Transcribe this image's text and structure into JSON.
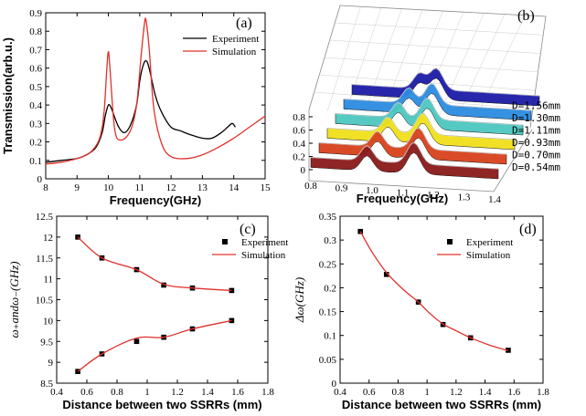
{
  "chart_data": [
    {
      "panel": "(a)",
      "type": "line",
      "xlabel": "Frequency(GHz)",
      "ylabel": "Transmission(arb.u.)",
      "xlim": [
        8,
        15
      ],
      "ylim": [
        0,
        0.9
      ],
      "xticks": [
        "8",
        "9",
        "10",
        "11",
        "12",
        "13",
        "14",
        "15"
      ],
      "yticks": [
        "0",
        "0.1",
        "0.2",
        "0.3",
        "0.4",
        "0.5",
        "0.6",
        "0.7",
        "0.8",
        "0.9"
      ],
      "legend": [
        "Experiment",
        "Simulation"
      ],
      "legend_position": "top-right",
      "series": [
        {
          "name": "Experiment",
          "color": "#000000",
          "x": [
            8.0,
            8.5,
            9.0,
            9.3,
            9.6,
            9.8,
            9.9,
            10.0,
            10.1,
            10.3,
            10.5,
            10.7,
            10.9,
            11.0,
            11.1,
            11.2,
            11.3,
            11.5,
            11.7,
            12.0,
            12.3,
            12.6,
            13.0,
            13.3,
            13.6,
            13.8,
            13.95,
            14.05
          ],
          "y": [
            0.09,
            0.1,
            0.11,
            0.13,
            0.17,
            0.25,
            0.34,
            0.4,
            0.38,
            0.29,
            0.25,
            0.29,
            0.4,
            0.53,
            0.61,
            0.64,
            0.6,
            0.45,
            0.36,
            0.28,
            0.26,
            0.24,
            0.22,
            0.22,
            0.25,
            0.28,
            0.3,
            0.28
          ]
        },
        {
          "name": "Simulation",
          "color": "#e0302a",
          "x": [
            8.0,
            8.5,
            9.0,
            9.4,
            9.7,
            9.85,
            9.95,
            10.0,
            10.05,
            10.2,
            10.4,
            10.7,
            10.9,
            11.05,
            11.15,
            11.2,
            11.3,
            11.45,
            11.7,
            12.0,
            12.5,
            13.0,
            13.5,
            14.0,
            14.5,
            15.0
          ],
          "y": [
            0.08,
            0.09,
            0.11,
            0.14,
            0.21,
            0.34,
            0.6,
            0.69,
            0.6,
            0.27,
            0.21,
            0.26,
            0.4,
            0.68,
            0.84,
            0.86,
            0.71,
            0.38,
            0.19,
            0.12,
            0.11,
            0.13,
            0.17,
            0.22,
            0.28,
            0.34
          ]
        }
      ]
    },
    {
      "panel": "(b)",
      "type": "line",
      "projection": "3d-waterfall",
      "xlabel": "Frequency(GHz)",
      "zlim": [
        0,
        0.8
      ],
      "xticks": [
        "0.8",
        "0.9",
        "1.0",
        "1.1",
        "1.2",
        "1.3",
        "1.4"
      ],
      "zticks": [
        "0",
        "0.2",
        "0.4",
        "0.6",
        "0.8"
      ],
      "series": [
        {
          "name": "D=0.54mm",
          "color": "#8b1a1a"
        },
        {
          "name": "D=0.70mm",
          "color": "#d8421c"
        },
        {
          "name": "D=0.93mm",
          "color": "#f0e01c"
        },
        {
          "name": "D=1.11mm",
          "color": "#4cc8c0"
        },
        {
          "name": "D=1.30mm",
          "color": "#2c8ce0"
        },
        {
          "name": "D=1.56mm",
          "color": "#1c1ca8"
        }
      ]
    },
    {
      "panel": "(c)",
      "type": "line",
      "xlabel": "Distance between two SSRRs (mm)",
      "ylabel": "ω₊andω₋(GHz)",
      "xlim": [
        0.4,
        1.8
      ],
      "ylim": [
        8.5,
        12.5
      ],
      "xticks": [
        "0.4",
        "0.6",
        "0.8",
        "1",
        "1.2",
        "1.4",
        "1.6",
        "1.8"
      ],
      "yticks": [
        "8.5",
        "9",
        "9.5",
        "10",
        "10.5",
        "11",
        "11.5",
        "12",
        "12.5"
      ],
      "legend": [
        "Experiment",
        "Simulation"
      ],
      "legend_position": "top-right",
      "series": [
        {
          "name": "Experiment",
          "style": "markers",
          "x": [
            0.54,
            0.7,
            0.93,
            1.11,
            1.3,
            1.56
          ],
          "y": [
            12.0,
            11.5,
            11.22,
            10.85,
            10.78,
            10.72
          ]
        },
        {
          "name": "Experiment",
          "style": "markers",
          "x": [
            0.54,
            0.7,
            0.93,
            1.11,
            1.3,
            1.56
          ],
          "y": [
            8.78,
            9.2,
            9.5,
            9.6,
            9.8,
            10.0
          ]
        },
        {
          "name": "Simulation",
          "style": "line",
          "x": [
            0.54,
            0.7,
            0.93,
            1.11,
            1.3,
            1.56
          ],
          "y": [
            12.0,
            11.5,
            11.22,
            10.87,
            10.78,
            10.72
          ]
        },
        {
          "name": "Simulation",
          "style": "line",
          "x": [
            0.54,
            0.7,
            0.93,
            1.11,
            1.3,
            1.56
          ],
          "y": [
            8.78,
            9.2,
            9.58,
            9.6,
            9.8,
            10.0
          ]
        }
      ]
    },
    {
      "panel": "(d)",
      "type": "line",
      "xlabel": "Distance between two SSRRs (mm)",
      "ylabel": "Δω(GHz)",
      "xlim": [
        0.4,
        1.8
      ],
      "ylim": [
        0,
        0.35
      ],
      "xticks": [
        "0.4",
        "0.6",
        "0.8",
        "1",
        "1.2",
        "1.4",
        "1.6",
        "1.8"
      ],
      "yticks": [
        "0",
        "0.05",
        "0.1",
        "0.15",
        "0.2",
        "0.25",
        "0.3",
        "0.35"
      ],
      "legend": [
        "Experiment",
        "Simulation"
      ],
      "legend_position": "top-right",
      "series": [
        {
          "name": "Experiment",
          "style": "markers",
          "x": [
            0.54,
            0.72,
            0.94,
            1.11,
            1.3,
            1.56
          ],
          "y": [
            0.318,
            0.228,
            0.17,
            0.123,
            0.095,
            0.069
          ]
        },
        {
          "name": "Simulation",
          "style": "line",
          "x": [
            0.54,
            0.62,
            0.72,
            0.83,
            0.94,
            1.02,
            1.11,
            1.2,
            1.3,
            1.43,
            1.56
          ],
          "y": [
            0.318,
            0.275,
            0.232,
            0.198,
            0.17,
            0.146,
            0.124,
            0.11,
            0.095,
            0.08,
            0.068
          ]
        }
      ]
    }
  ]
}
